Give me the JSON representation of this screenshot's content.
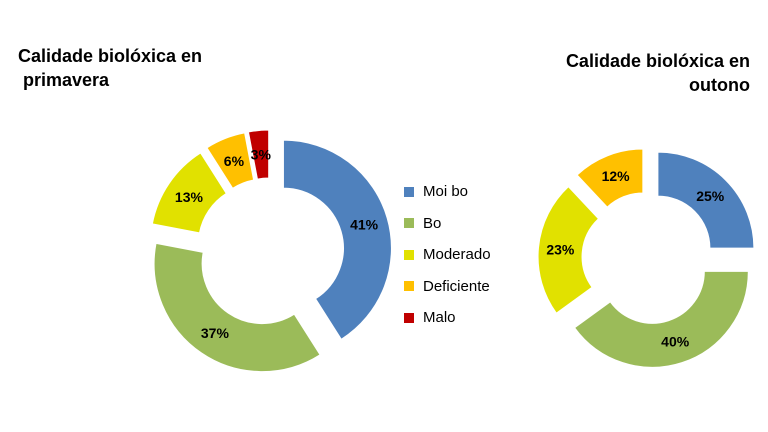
{
  "chart_data": [
    {
      "type": "donut",
      "title": "Calidade biolóxica en\n primavera",
      "categories": [
        "Moi bo",
        "Bo",
        "Moderado",
        "Deficiente",
        "Malo"
      ],
      "values": [
        41,
        37,
        13,
        6,
        3
      ],
      "labels": [
        "41%",
        "37%",
        "13%",
        "6%",
        "3%"
      ],
      "exploded": true
    },
    {
      "type": "donut",
      "title": "Calidade biolóxica en\noutono",
      "categories": [
        "Moi bo",
        "Bo",
        "Moderado",
        "Deficiente",
        "Malo"
      ],
      "values": [
        25,
        40,
        23,
        12,
        0
      ],
      "labels": [
        "25%",
        "40%",
        "23%",
        "12%",
        ""
      ],
      "exploded": true
    }
  ],
  "legend": {
    "position": "center",
    "items": [
      {
        "label": "Moi bo",
        "color": "#4F81BD"
      },
      {
        "label": "Bo",
        "color": "#9BBB59"
      },
      {
        "label": "Moderado",
        "color": "#E1E100"
      },
      {
        "label": "Deficiente",
        "color": "#FFC000"
      },
      {
        "label": "Malo",
        "color": "#C00000"
      }
    ]
  }
}
